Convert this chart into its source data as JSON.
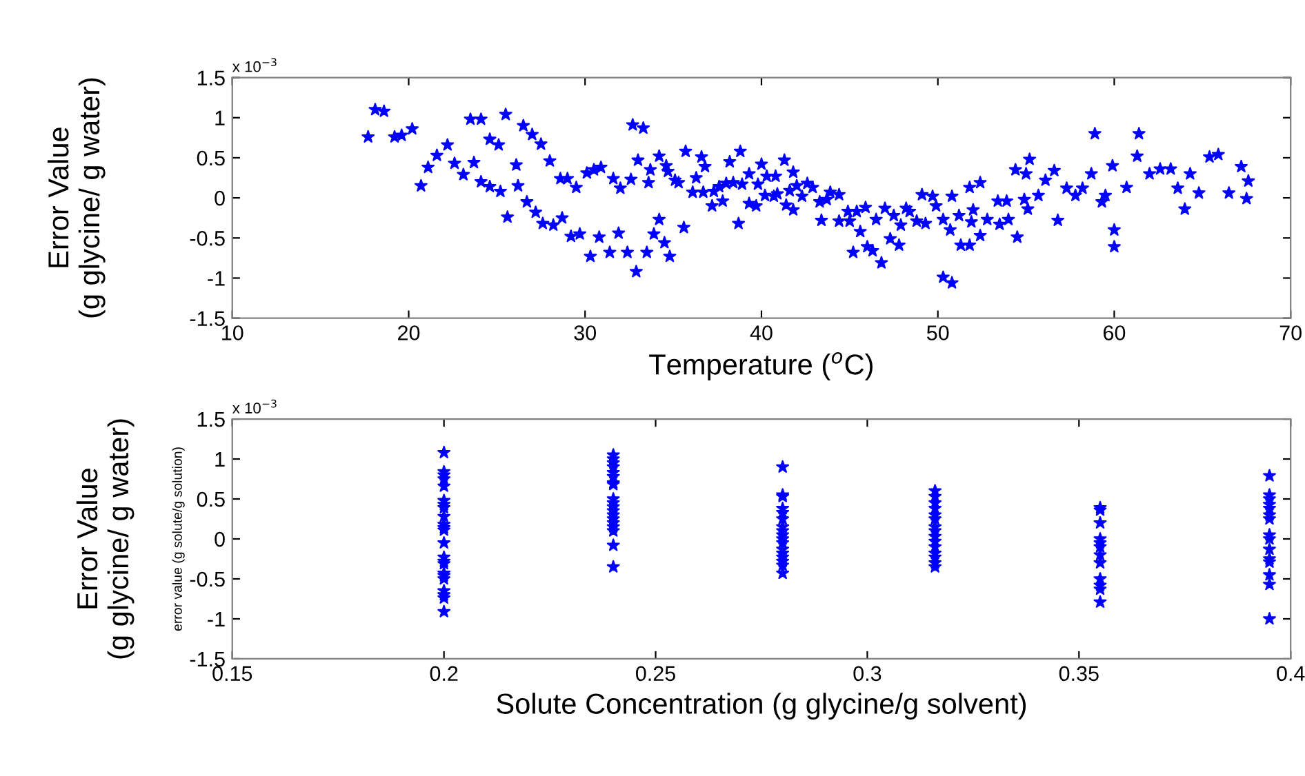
{
  "chart_data": [
    {
      "type": "scatter",
      "xlabel": "Temperature ($^{o}$C)",
      "ylabel": "Error Value\n(g glycine/ g water)",
      "annotations": [
        "x 10$^{−3}$"
      ],
      "marker": "star",
      "grid": false,
      "legend": false,
      "xlim": [
        10,
        70
      ],
      "xticks": [
        10,
        20,
        30,
        40,
        50,
        60,
        70
      ],
      "ylim": [
        -1.5,
        1.5
      ],
      "yticks": [
        -1.5,
        -1,
        -0.5,
        0,
        0.5,
        1,
        1.5
      ],
      "series": [
        {
          "color": "#0000ff",
          "x": [
            17.7,
            18.1,
            18.6,
            19.2,
            19.6,
            20.2,
            20.7,
            21.1,
            21.6,
            22.2,
            22.6,
            23.1,
            23.5,
            23.7,
            24.1,
            24.1,
            24.6,
            24.6,
            25.1,
            25.2,
            25.5,
            25.6,
            26.1,
            26.2,
            26.5,
            26.7,
            27.0,
            27.2,
            27.5,
            27.6,
            28.0,
            28.2,
            28.6,
            28.7,
            29.0,
            29.2,
            29.5,
            29.7,
            30.1,
            30.3,
            30.5,
            30.9,
            30.8,
            31.4,
            31.6,
            31.9,
            32.0,
            32.4,
            32.6,
            32.7,
            32.9,
            33.0,
            33.3,
            33.5,
            33.6,
            33.7,
            33.9,
            34.2,
            34.2,
            34.5,
            34.6,
            34.7,
            34.8,
            35.1,
            35.3,
            35.6,
            35.7,
            36.1,
            36.3,
            36.6,
            36.7,
            36.8,
            37.2,
            37.3,
            37.6,
            37.8,
            38.0,
            38.2,
            38.4,
            38.7,
            38.8,
            38.9,
            39.3,
            39.3,
            39.7,
            39.8,
            40.0,
            40.2,
            40.3,
            40.7,
            40.8,
            40.9,
            41.3,
            41.4,
            41.6,
            41.8,
            41.8,
            42.0,
            42.3,
            42.6,
            42.9,
            43.3,
            43.4,
            43.7,
            43.9,
            44.4,
            44.4,
            44.9,
            45.0,
            45.2,
            45.4,
            45.6,
            45.9,
            46.0,
            46.3,
            46.5,
            46.8,
            47.0,
            47.3,
            47.5,
            47.8,
            47.9,
            48.2,
            48.4,
            48.8,
            49.1,
            49.3,
            49.7,
            49.9,
            50.3,
            50.3,
            50.7,
            50.8,
            50.8,
            51.2,
            51.3,
            51.8,
            51.8,
            51.9,
            52.0,
            52.4,
            52.4,
            52.8,
            53.4,
            53.5,
            53.9,
            54.0,
            54.4,
            54.5,
            54.9,
            55.1,
            55.0,
            55.2,
            55.7,
            56.1,
            56.6,
            56.8,
            57.3,
            57.8,
            58.2,
            58.7,
            58.9,
            59.3,
            59.5,
            59.9,
            60.0,
            60.0,
            60.7,
            61.3,
            61.4,
            62.0,
            62.6,
            63.2,
            63.6,
            64.0,
            64.3,
            64.8,
            65.4,
            65.9,
            66.5,
            67.2,
            67.5,
            67.6
          ],
          "values": [
            0.76,
            1.1,
            1.08,
            0.76,
            0.78,
            0.86,
            0.15,
            0.38,
            0.53,
            0.66,
            0.43,
            0.29,
            0.98,
            0.44,
            0.98,
            0.2,
            0.73,
            0.14,
            0.66,
            0.08,
            1.04,
            -0.24,
            0.41,
            0.15,
            0.9,
            -0.05,
            0.79,
            -0.18,
            0.67,
            -0.32,
            0.46,
            -0.34,
            0.24,
            -0.25,
            0.24,
            -0.48,
            0.13,
            -0.45,
            0.31,
            -0.73,
            0.35,
            0.38,
            -0.49,
            -0.68,
            0.24,
            -0.44,
            0.12,
            -0.68,
            0.23,
            0.91,
            -0.92,
            0.47,
            0.87,
            -0.68,
            0.19,
            0.35,
            -0.45,
            -0.27,
            0.52,
            -0.56,
            0.4,
            0.33,
            -0.73,
            0.22,
            0.19,
            -0.37,
            0.58,
            0.07,
            0.25,
            0.51,
            0.07,
            0.39,
            -0.1,
            0.08,
            0.14,
            -0.04,
            0.18,
            0.45,
            0.19,
            -0.32,
            0.58,
            0.17,
            0.3,
            -0.07,
            -0.1,
            0.17,
            0.42,
            0.03,
            0.27,
            0.02,
            0.27,
            0.05,
            0.47,
            -0.09,
            0.09,
            0.32,
            -0.15,
            0.15,
            0.02,
            0.18,
            0.13,
            -0.05,
            -0.28,
            -0.02,
            0.07,
            0.04,
            -0.29,
            -0.17,
            -0.29,
            -0.68,
            -0.17,
            -0.42,
            -0.12,
            -0.61,
            -0.66,
            -0.27,
            -0.81,
            -0.13,
            -0.51,
            -0.22,
            -0.59,
            -0.34,
            -0.13,
            -0.17,
            -0.29,
            0.04,
            -0.32,
            0.02,
            -0.1,
            -0.99,
            -0.27,
            -0.4,
            -1.06,
            0.02,
            -0.22,
            -0.59,
            -0.59,
            0.13,
            -0.3,
            -0.15,
            0.19,
            -0.47,
            -0.27,
            -0.04,
            -0.33,
            -0.04,
            -0.27,
            0.35,
            -0.49,
            -0.02,
            -0.14,
            0.3,
            0.48,
            0.03,
            0.22,
            0.34,
            -0.28,
            0.12,
            0.03,
            0.12,
            0.3,
            0.8,
            -0.05,
            0.03,
            0.4,
            -0.4,
            -0.61,
            0.13,
            0.52,
            0.8,
            0.3,
            0.36,
            0.36,
            0.12,
            -0.14,
            0.3,
            0.06,
            0.51,
            0.54,
            0.06,
            0.39,
            -0.01,
            0.21
          ]
        }
      ]
    },
    {
      "type": "scatter",
      "xlabel": "Solute Concentration (g glycine/g solvent)",
      "ylabel": "error value (g solute/g solution)",
      "annotations": [
        "x 10$^{−3}$",
        "Error Value\n(g glycine/ g water)"
      ],
      "marker": "star",
      "grid": false,
      "legend": false,
      "xlim": [
        0.15,
        0.4
      ],
      "xticks": [
        0.15,
        0.2,
        0.25,
        0.3,
        0.35,
        0.4
      ],
      "ylim": [
        -1.5,
        1.5
      ],
      "yticks": [
        -1.5,
        -1,
        -0.5,
        0,
        0.5,
        1,
        1.5
      ],
      "series": [
        {
          "color": "#0000ff",
          "x": [
            0.2,
            0.2,
            0.2,
            0.2,
            0.2,
            0.2,
            0.2,
            0.2,
            0.2,
            0.2,
            0.2,
            0.2,
            0.2,
            0.2,
            0.2,
            0.2,
            0.2,
            0.2,
            0.2,
            0.2,
            0.2,
            0.2,
            0.2,
            0.24,
            0.24,
            0.24,
            0.24,
            0.24,
            0.24,
            0.24,
            0.24,
            0.24,
            0.24,
            0.24,
            0.24,
            0.24,
            0.24,
            0.24,
            0.24,
            0.24,
            0.24,
            0.24,
            0.28,
            0.28,
            0.28,
            0.28,
            0.28,
            0.28,
            0.28,
            0.28,
            0.28,
            0.28,
            0.28,
            0.28,
            0.28,
            0.28,
            0.28,
            0.28,
            0.28,
            0.316,
            0.316,
            0.316,
            0.316,
            0.316,
            0.316,
            0.316,
            0.316,
            0.316,
            0.316,
            0.316,
            0.316,
            0.316,
            0.316,
            0.316,
            0.355,
            0.355,
            0.355,
            0.355,
            0.355,
            0.355,
            0.355,
            0.355,
            0.355,
            0.355,
            0.355,
            0.355,
            0.395,
            0.395,
            0.395,
            0.395,
            0.395,
            0.395,
            0.395,
            0.395,
            0.395,
            0.395,
            0.395,
            0.395,
            0.395,
            0.395,
            0.395
          ],
          "values": [
            1.08,
            0.84,
            0.8,
            0.75,
            0.66,
            0.48,
            0.43,
            0.39,
            0.28,
            0.18,
            0.14,
            0.11,
            -0.05,
            -0.23,
            -0.28,
            -0.31,
            -0.43,
            -0.46,
            -0.5,
            -0.65,
            -0.7,
            -0.74,
            -0.91,
            1.05,
            1.0,
            0.95,
            0.9,
            0.83,
            0.78,
            0.7,
            0.68,
            0.5,
            0.45,
            0.4,
            0.35,
            0.3,
            0.25,
            0.2,
            0.15,
            0.1,
            -0.08,
            -0.35,
            0.9,
            0.55,
            0.53,
            0.38,
            0.33,
            0.25,
            0.15,
            0.1,
            0.05,
            0,
            -0.05,
            -0.13,
            -0.18,
            -0.23,
            -0.28,
            -0.33,
            -0.43,
            0.6,
            0.53,
            0.45,
            0.38,
            0.3,
            0.25,
            0.15,
            0.1,
            0.03,
            -0.03,
            -0.1,
            -0.18,
            -0.23,
            -0.3,
            -0.35,
            0.39,
            0.36,
            0.2,
            0,
            -0.05,
            -0.1,
            -0.2,
            -0.3,
            -0.5,
            -0.58,
            -0.63,
            -0.79,
            0.79,
            0.55,
            0.5,
            0.43,
            0.38,
            0.3,
            0.25,
            0.05,
            0,
            -0.13,
            -0.25,
            -0.29,
            -0.45,
            -0.57,
            -1.0
          ]
        }
      ]
    }
  ]
}
